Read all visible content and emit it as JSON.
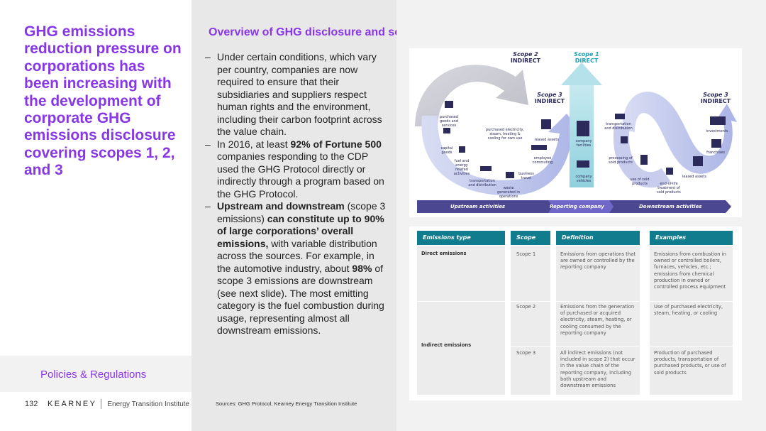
{
  "left": {
    "title": "GHG emissions reduction pressure on corporations has been increasing with the development of corporate GHG emissions disclosure covering scopes 1, 2, and 3",
    "section": "Policies & Regulations",
    "page_number": "132",
    "logo": "KEARNEY",
    "logo_sub": "Energy Transition Institute"
  },
  "slide": {
    "title": "Overview of GHG disclosure and scopes",
    "bullets": [
      {
        "dash": "–",
        "parts": [
          "Under certain conditions, which vary per country, companies are now required to ensure that their subsidiaries and suppliers respect human rights and the environment, including their carbon footprint across the value chain."
        ]
      },
      {
        "dash": "–",
        "parts": [
          "In 2016, at least ",
          "92% of Fortune 500",
          " companies responding to the CDP used the GHG Protocol directly or indirectly through a program based on the GHG Protocol."
        ]
      },
      {
        "dash": "–",
        "parts": [
          "Upstream and downstream",
          " (scope 3 emissions) ",
          "can constitute up to 90% of large corporations’ overall emissions,",
          " with variable distribution across the sources. For example, in the automotive industry, about ",
          "98%",
          " of scope 3 emissions are downstream (see next slide). The most emitting category is the fuel combustion during usage, representing almost all downstream emissions."
        ]
      }
    ],
    "source": "Sources: GHG Protocol, Kearney Energy Transition Institute"
  },
  "diagram": {
    "scope2": {
      "name": "Scope 2",
      "kind": "INDIRECT"
    },
    "scope1": {
      "name": "Scope 1",
      "kind": "DIRECT"
    },
    "scope3_up": {
      "name": "Scope 3",
      "kind": "INDIRECT"
    },
    "scope3_down": {
      "name": "Scope 3",
      "kind": "INDIRECT"
    },
    "labels": {
      "purchased_goods": "purchased goods and services",
      "purchased_electricity": "purchased electricity, steam, heating & cooling for own use",
      "capital_goods": "capital goods",
      "fuel_energy": "fuel and energy related activities",
      "transport_up": "transportation and distribution",
      "waste": "waste generated in operations",
      "business_travel": "business travel",
      "employee_commuting": "employee commuting",
      "leased_assets_up": "leased assets",
      "company_facilities": "company facilities",
      "company_vehicles": "company vehicles",
      "transport_down": "transportation and distribution",
      "processing": "processing of sold products",
      "use_sold": "use of sold products",
      "end_of_life": "end-of-life treatment of sold products",
      "leased_assets_down": "leased assets",
      "franchises": "franchises",
      "investments": "investments"
    },
    "band": {
      "upstream": "Upstream activities",
      "reporting": "Reporting company",
      "downstream": "Downstream activities"
    }
  },
  "table": {
    "headers": [
      "Emissions type",
      "Scope",
      "Definition",
      "Examples"
    ],
    "types": {
      "direct": "Direct emissions",
      "indirect": "Indirect emissions"
    },
    "rows": [
      {
        "scope": "Scope 1",
        "definition": "Emissions from operations that are owned or controlled by the reporting company",
        "examples": "Emissions from combustion in owned or controlled boilers, furnaces, vehicles, etc.; emissions from chemical production in owned or controlled process equipment"
      },
      {
        "scope": "Scope 2",
        "definition": "Emissions from the generation of purchased or acquired electricity, steam, heating, or cooling consumed by the reporting company",
        "examples": "Use of purchased electricity, steam, heating, or cooling"
      },
      {
        "scope": "Scope 3",
        "definition": "All indirect emissions (not included in scope 2) that occur in the value chain of the reporting company, including both upstream and downstream emissions",
        "examples": "Production of purchased products, transportation of purchased products, or use of sold products"
      }
    ]
  },
  "colors": {
    "purple": "#8737e6",
    "teal": "#117c8e",
    "navy": "#2b2a5a"
  }
}
